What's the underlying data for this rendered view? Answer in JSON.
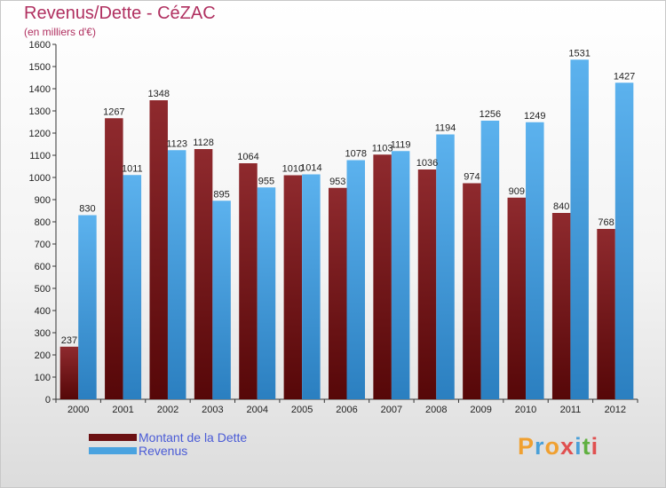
{
  "header": {
    "title": "Revenus/Dette - CéZAC",
    "subtitle": "(en milliers d'€)"
  },
  "brand": {
    "logo_text": "Proxiti"
  },
  "colors": {
    "debt": "#7a1418",
    "revenue": "#4aa3e0"
  },
  "chart_data": {
    "type": "bar",
    "categories": [
      "2000",
      "2001",
      "2002",
      "2003",
      "2004",
      "2005",
      "2006",
      "2007",
      "2008",
      "2009",
      "2010",
      "2011",
      "2012"
    ],
    "series": [
      {
        "name": "Montant de la Dette",
        "values": [
          237,
          1267,
          1348,
          1128,
          1064,
          1010,
          953,
          1103,
          1036,
          974,
          909,
          840,
          768
        ]
      },
      {
        "name": "Revenus",
        "values": [
          830,
          1011,
          1123,
          895,
          955,
          1014,
          1078,
          1119,
          1194,
          1256,
          1249,
          1531,
          1427
        ]
      }
    ],
    "title": "Revenus/Dette - CéZAC",
    "subtitle": "(en milliers d'€)",
    "xlabel": "",
    "ylabel": "",
    "ylim": [
      0,
      1600
    ],
    "yticks": [
      "0",
      "100",
      "200",
      "300",
      "400",
      "500",
      "600",
      "700",
      "800",
      "900",
      "1000",
      "1100",
      "1200",
      "1300",
      "1400",
      "1500",
      "1600"
    ],
    "grid": false,
    "legend": "bottom-left"
  }
}
